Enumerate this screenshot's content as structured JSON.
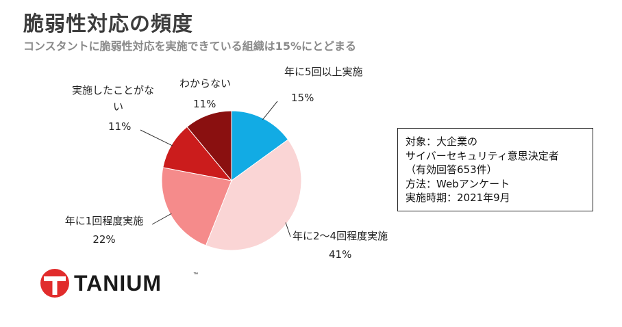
{
  "header": {
    "title": "脆弱性対応の頻度",
    "subtitle": "コンスタントに脆弱性対応を実施できている組織は15%にとどまる"
  },
  "chart_data": {
    "type": "pie",
    "start_angle_deg": 0,
    "direction": "clockwise",
    "slices": [
      {
        "label": "年に5回以上実施",
        "label_lines": [
          "年に5回以上実施"
        ],
        "value": 15,
        "value_label": "15%",
        "color": "#12ABE4"
      },
      {
        "label": "年に2〜4回程度実施",
        "label_lines": [
          "年に2〜4回程度実施"
        ],
        "value": 41,
        "value_label": "41%",
        "color": "#FAD5D5"
      },
      {
        "label": "年に1回程度実施",
        "label_lines": [
          "年に1回程度実施"
        ],
        "value": 22,
        "value_label": "22%",
        "color": "#F58B8B"
      },
      {
        "label": "実施したことがない",
        "label_lines": [
          "実施したことがな",
          "い"
        ],
        "value": 11,
        "value_label": "11%",
        "color": "#CB1C1C"
      },
      {
        "label": "わからない",
        "label_lines": [
          "わからない"
        ],
        "value": 11,
        "value_label": "11%",
        "color": "#8A1010"
      }
    ]
  },
  "infobox": {
    "lines": [
      "対象：大企業の",
      "サイバーセキュリティ意思決定者",
      "（有効回答653件）",
      "方法：Webアンケート",
      "実施時期：2021年9月"
    ]
  },
  "logo": {
    "text": "TANIUM",
    "tm": "™",
    "color": "#E12C2C"
  }
}
